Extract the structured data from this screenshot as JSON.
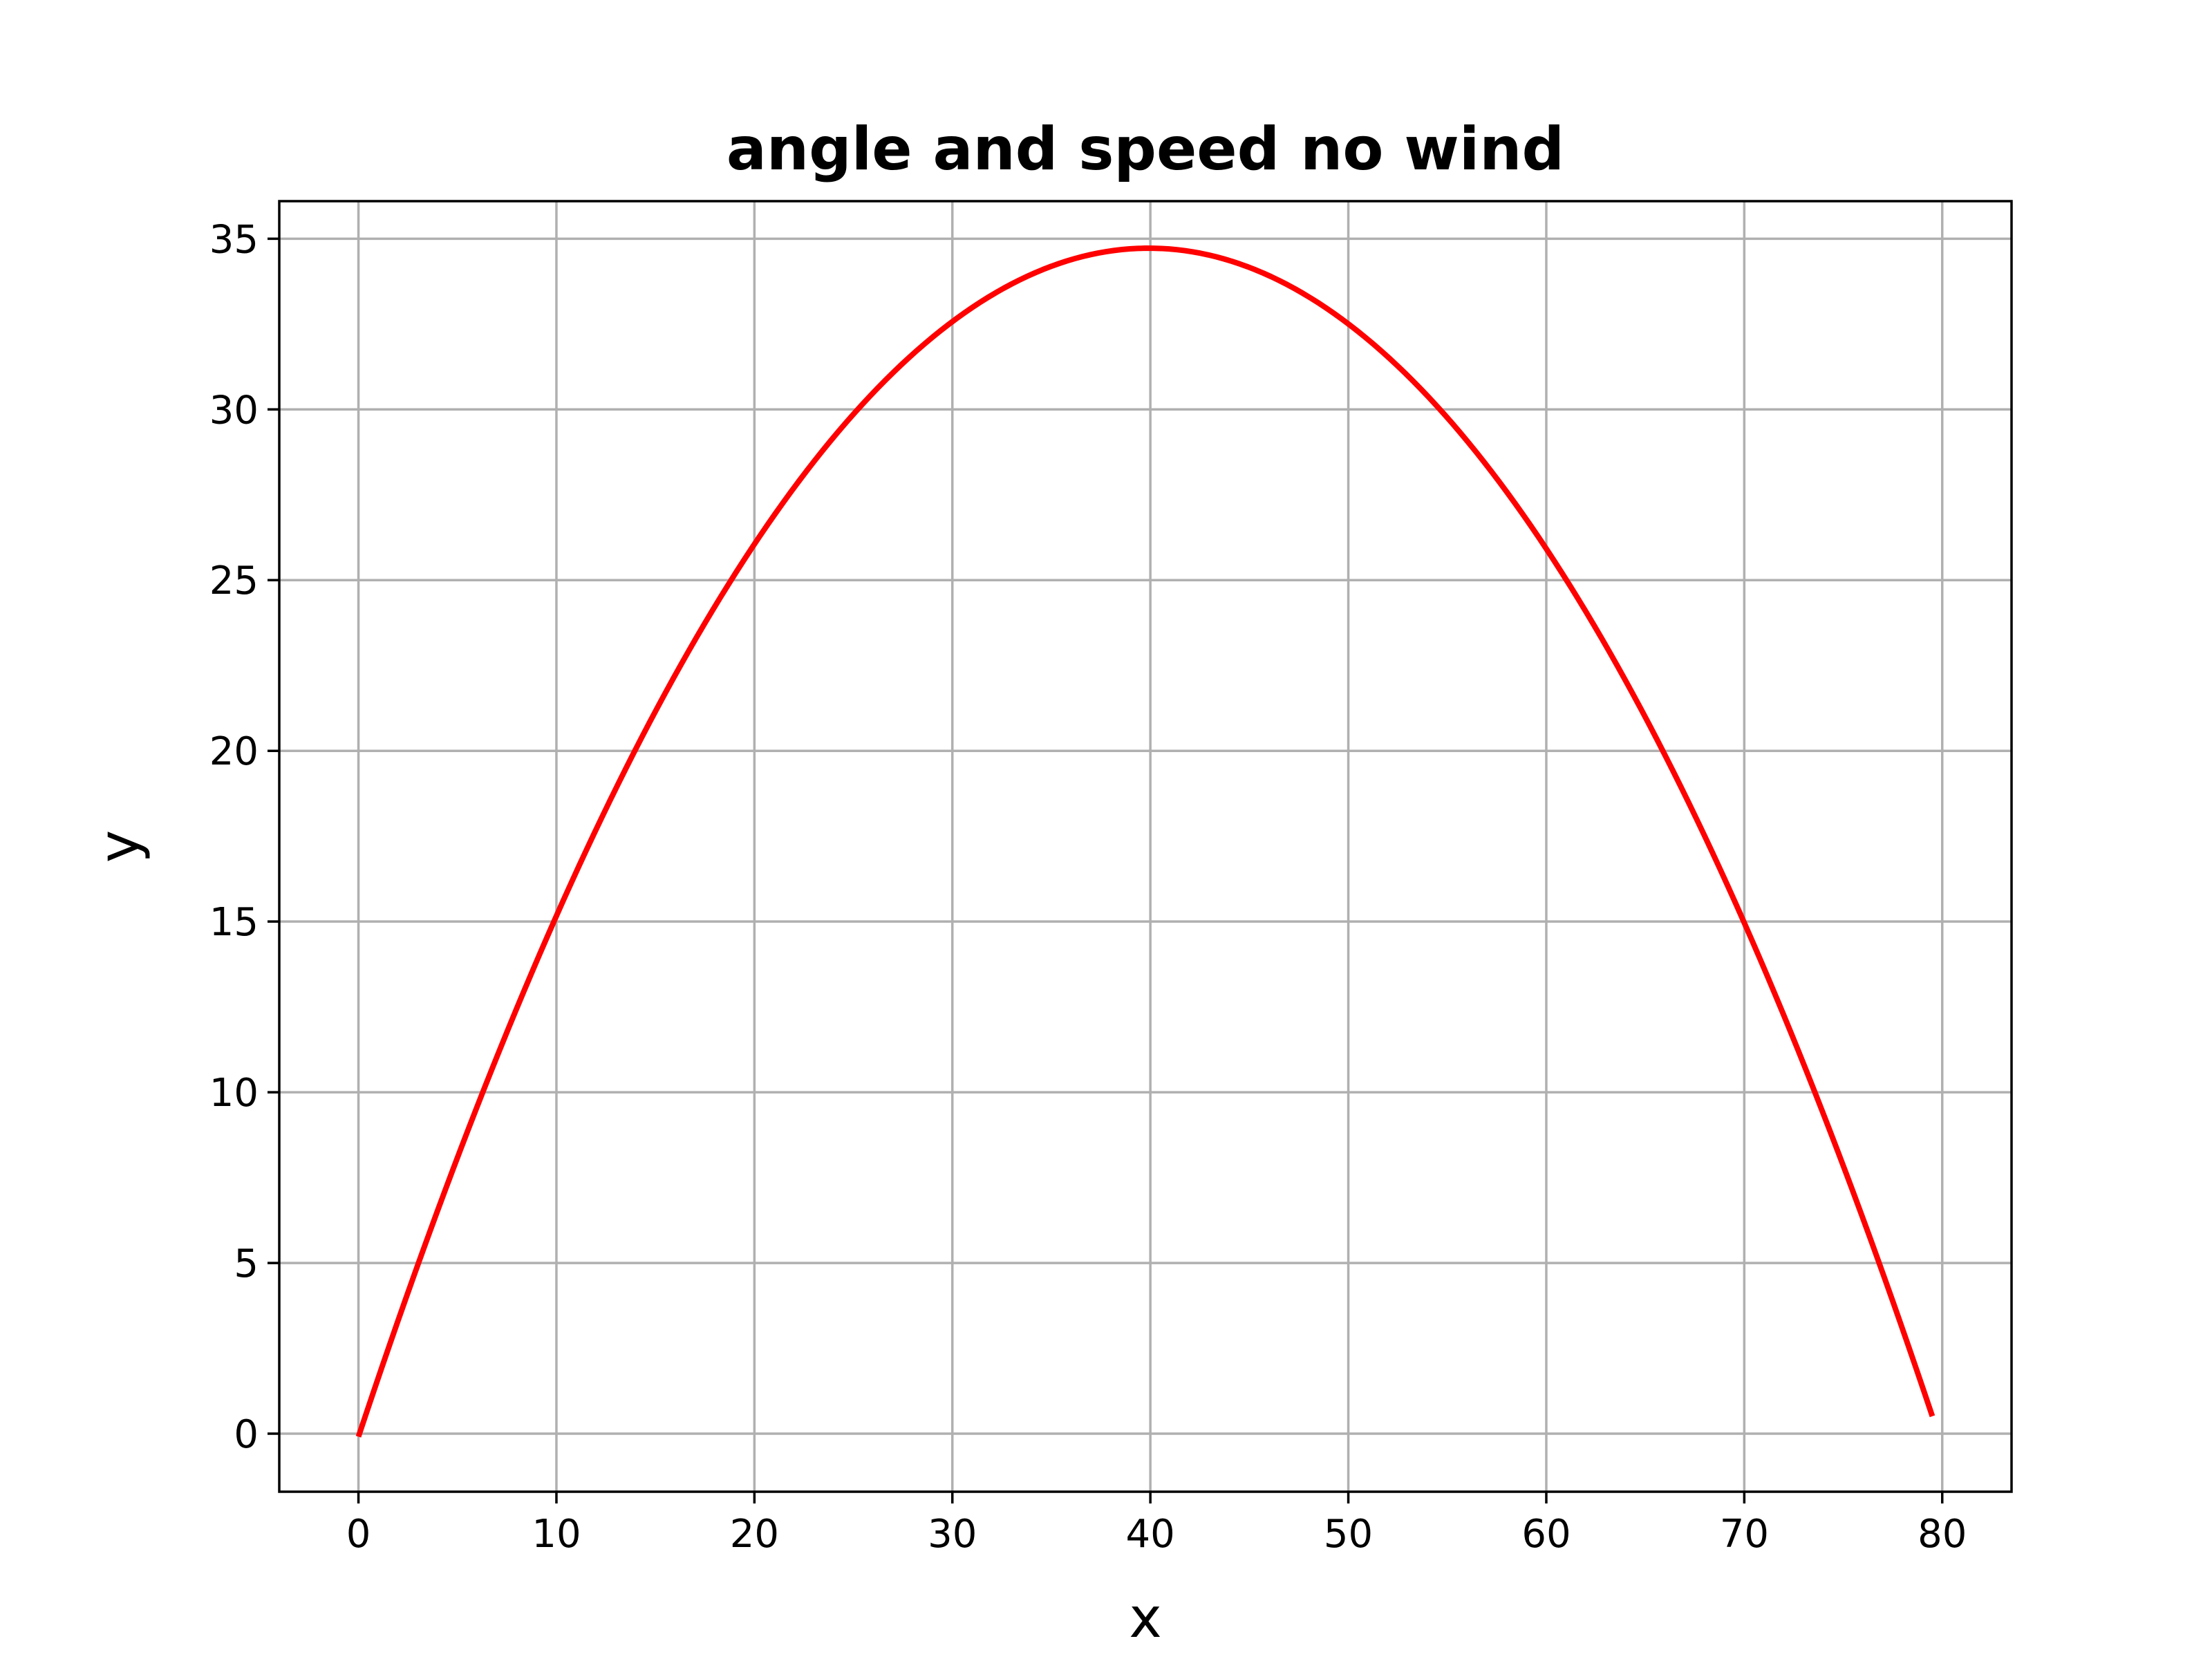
{
  "chart_data": {
    "type": "line",
    "title": "angle and speed no wind",
    "xlabel": "x",
    "ylabel": "y",
    "xlim": [
      -4,
      83.5
    ],
    "ylim": [
      -1.7,
      36.1
    ],
    "xticks": [
      0,
      10,
      20,
      30,
      40,
      50,
      60,
      70,
      80
    ],
    "yticks": [
      0,
      5,
      10,
      15,
      20,
      25,
      30,
      35
    ],
    "xtick_labels": [
      "0",
      "10",
      "20",
      "30",
      "40",
      "50",
      "60",
      "70",
      "80"
    ],
    "ytick_labels": [
      "0",
      "5",
      "10",
      "15",
      "20",
      "25",
      "30",
      "35"
    ],
    "grid": true,
    "legend": "none",
    "series": [
      {
        "color": "#ff0000",
        "x": [
          0,
          5,
          10,
          15,
          20,
          25,
          30,
          35,
          40,
          45,
          50,
          55,
          60,
          65,
          70,
          75,
          79.5
        ],
        "y": [
          0,
          8.13,
          15.17,
          21.13,
          26.0,
          29.79,
          32.5,
          34.13,
          34.67,
          34.13,
          32.5,
          29.79,
          26.0,
          21.13,
          15.17,
          8.13,
          0
        ]
      }
    ]
  }
}
